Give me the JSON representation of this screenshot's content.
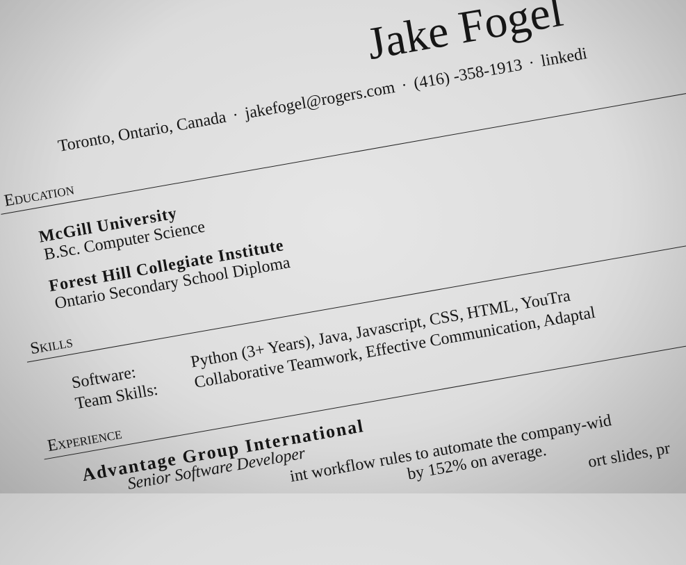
{
  "header": {
    "name": "Jake Fogel",
    "separator": "·",
    "contact": [
      "Toronto, Ontario, Canada",
      "jakefogel@rogers.com",
      "(416) -358-1913",
      "linkedi"
    ]
  },
  "education": {
    "heading": "Education",
    "entries": [
      {
        "school": "McGill University",
        "degree": "B.Sc. Computer Science"
      },
      {
        "school": "Forest Hill Collegiate Institute",
        "degree": "Ontario Secondary School Diploma"
      }
    ]
  },
  "skills": {
    "heading": "Skills",
    "rows": [
      [
        "Software:",
        "Python (3+ Years), Java, Javascript, CSS, HTML, YouTra"
      ],
      [
        "Team Skills:",
        "Collaborative Teamwork, Effective Communication, Adaptal"
      ]
    ]
  },
  "experience": {
    "heading": "Experience",
    "entries": [
      {
        "company": "Advantage Group International",
        "role": "Senior Software Developer",
        "fragments": [
          "int workflow rules to automate the company-wid",
          "by 152% on average.",
          "ort slides, pr"
        ]
      }
    ]
  }
}
